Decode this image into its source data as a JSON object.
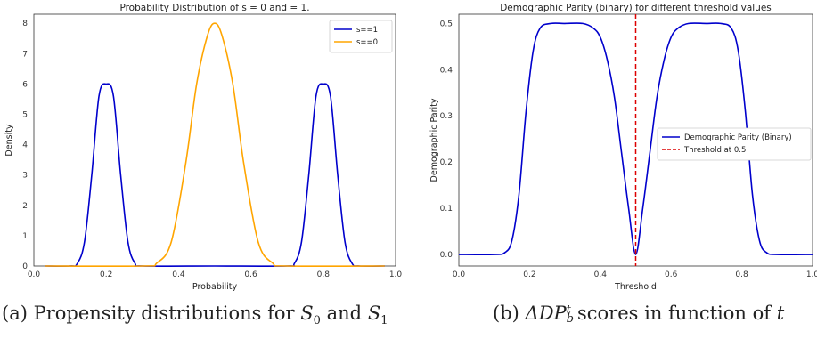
{
  "chart_data": [
    {
      "type": "line",
      "title": "Probability Distribution of s = 0 and = 1.",
      "xlabel": "Probability",
      "ylabel": "Density",
      "xlim": [
        0,
        1
      ],
      "ylim": [
        0,
        8.3
      ],
      "xticks": [
        "0.0",
        "0.2",
        "0.4",
        "0.6",
        "0.8",
        "1.0"
      ],
      "yticks": [
        "0",
        "1",
        "2",
        "3",
        "4",
        "5",
        "6",
        "7",
        "8"
      ],
      "legend_position": "top-right",
      "grid": false,
      "series": [
        {
          "name": "s==1",
          "color": "#0000cc",
          "x": [
            0.03,
            0.1,
            0.12,
            0.14,
            0.16,
            0.18,
            0.2,
            0.22,
            0.24,
            0.26,
            0.28,
            0.3,
            0.5,
            0.7,
            0.72,
            0.74,
            0.76,
            0.78,
            0.8,
            0.82,
            0.84,
            0.86,
            0.88,
            0.9,
            0.97
          ],
          "y": [
            0.0,
            0.0,
            0.08,
            0.8,
            3.0,
            5.6,
            6.0,
            5.6,
            3.0,
            0.8,
            0.08,
            0.0,
            0.0,
            0.0,
            0.08,
            0.8,
            3.0,
            5.6,
            6.0,
            5.6,
            3.0,
            0.8,
            0.08,
            0.0,
            0.0
          ]
        },
        {
          "name": "s==0",
          "color": "#ffa500",
          "x": [
            0.03,
            0.3,
            0.34,
            0.38,
            0.42,
            0.45,
            0.48,
            0.5,
            0.52,
            0.55,
            0.58,
            0.62,
            0.66,
            0.7,
            0.97
          ],
          "y": [
            0.0,
            0.0,
            0.1,
            0.8,
            3.4,
            6.0,
            7.6,
            8.0,
            7.6,
            6.0,
            3.4,
            0.8,
            0.1,
            0.0,
            0.0
          ]
        }
      ]
    },
    {
      "type": "line",
      "title": "Demographic Parity (binary) for different threshold values",
      "xlabel": "Threshold",
      "ylabel": "Demographic Parity",
      "xlim": [
        0,
        1
      ],
      "ylim": [
        -0.025,
        0.52
      ],
      "xticks": [
        "0.0",
        "0.2",
        "0.4",
        "0.6",
        "0.8",
        "1.0"
      ],
      "yticks": [
        "0.0",
        "0.1",
        "0.2",
        "0.3",
        "0.4",
        "0.5"
      ],
      "legend_position": "center-right",
      "grid": false,
      "series": [
        {
          "name": "Demographic Parity (Binary)",
          "color": "#0000cc",
          "x": [
            0.0,
            0.1,
            0.13,
            0.15,
            0.17,
            0.19,
            0.21,
            0.23,
            0.26,
            0.3,
            0.35,
            0.38,
            0.4,
            0.42,
            0.44,
            0.46,
            0.48,
            0.5,
            0.52,
            0.54,
            0.56,
            0.58,
            0.6,
            0.62,
            0.65,
            0.7,
            0.74,
            0.77,
            0.79,
            0.81,
            0.83,
            0.85,
            0.87,
            0.9,
            1.0
          ],
          "y": [
            0.0,
            0.0,
            0.004,
            0.03,
            0.13,
            0.31,
            0.44,
            0.49,
            0.5,
            0.5,
            0.5,
            0.49,
            0.47,
            0.42,
            0.34,
            0.22,
            0.1,
            0.0,
            0.1,
            0.22,
            0.34,
            0.42,
            0.47,
            0.49,
            0.5,
            0.5,
            0.5,
            0.49,
            0.44,
            0.31,
            0.13,
            0.03,
            0.004,
            0.0,
            0.0
          ]
        }
      ],
      "threshold_line": {
        "name": "Threshold at 0.5",
        "x": 0.5,
        "color": "#dd0000"
      }
    }
  ],
  "captions": {
    "a_prefix": "(a) Propensity distributions for",
    "a_and": "and",
    "a_s0": "S",
    "a_s0_sub": "0",
    "a_s1": "S",
    "a_s1_sub": "1",
    "b_prefix": "(b)",
    "b_metric": "ΔDP",
    "b_sup": "t",
    "b_sub": "b",
    "b_suffix": "scores in function of",
    "b_var": "t"
  }
}
